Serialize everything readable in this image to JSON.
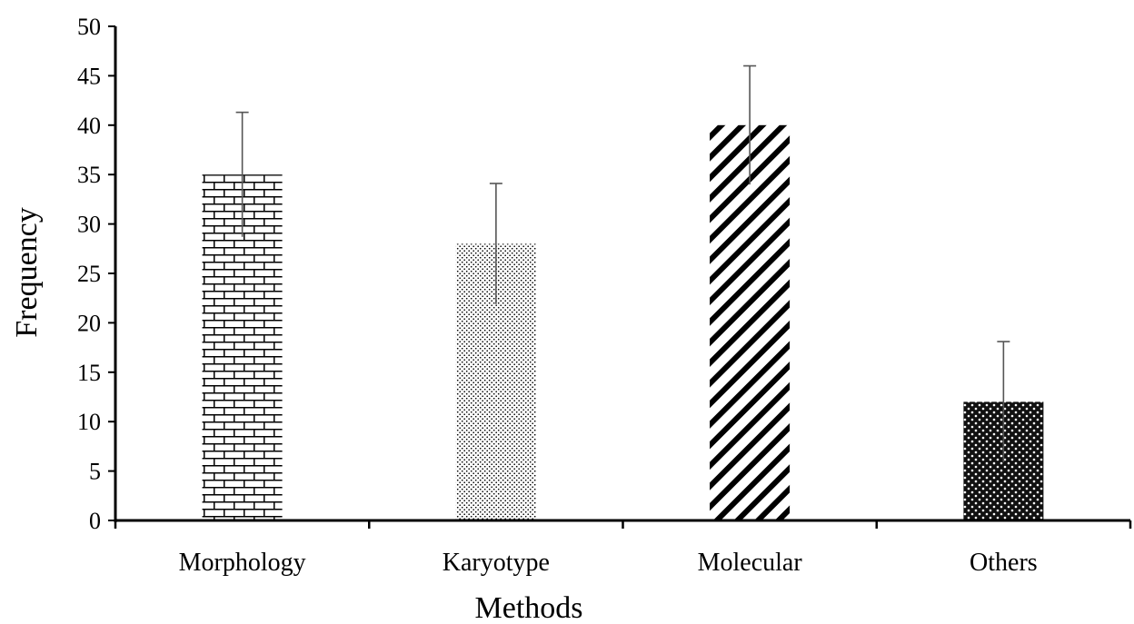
{
  "chart_data": {
    "type": "bar",
    "title": "",
    "xlabel": "Methods",
    "ylabel": "Frequency",
    "categories": [
      "Morphology",
      "Karyotype",
      "Molecular",
      "Others"
    ],
    "values": [
      35,
      28,
      40,
      12
    ],
    "error_plus": [
      6.3,
      6.1,
      6.0,
      6.1
    ],
    "error_minus": [
      6.3,
      6.1,
      6.0,
      6.1
    ],
    "ylim": [
      0,
      50
    ],
    "yticks": [
      "0",
      "5",
      "10",
      "15",
      "20",
      "25",
      "30",
      "35",
      "40",
      "45",
      "50"
    ],
    "bar_fills": [
      "brick",
      "light-dots",
      "diagonal-stripes",
      "dark-dots"
    ],
    "grid": false,
    "legend": "none",
    "colors": {
      "axis": "#000000",
      "pattern": "#000000",
      "errorbar": "#555555",
      "background": "#ffffff"
    }
  }
}
